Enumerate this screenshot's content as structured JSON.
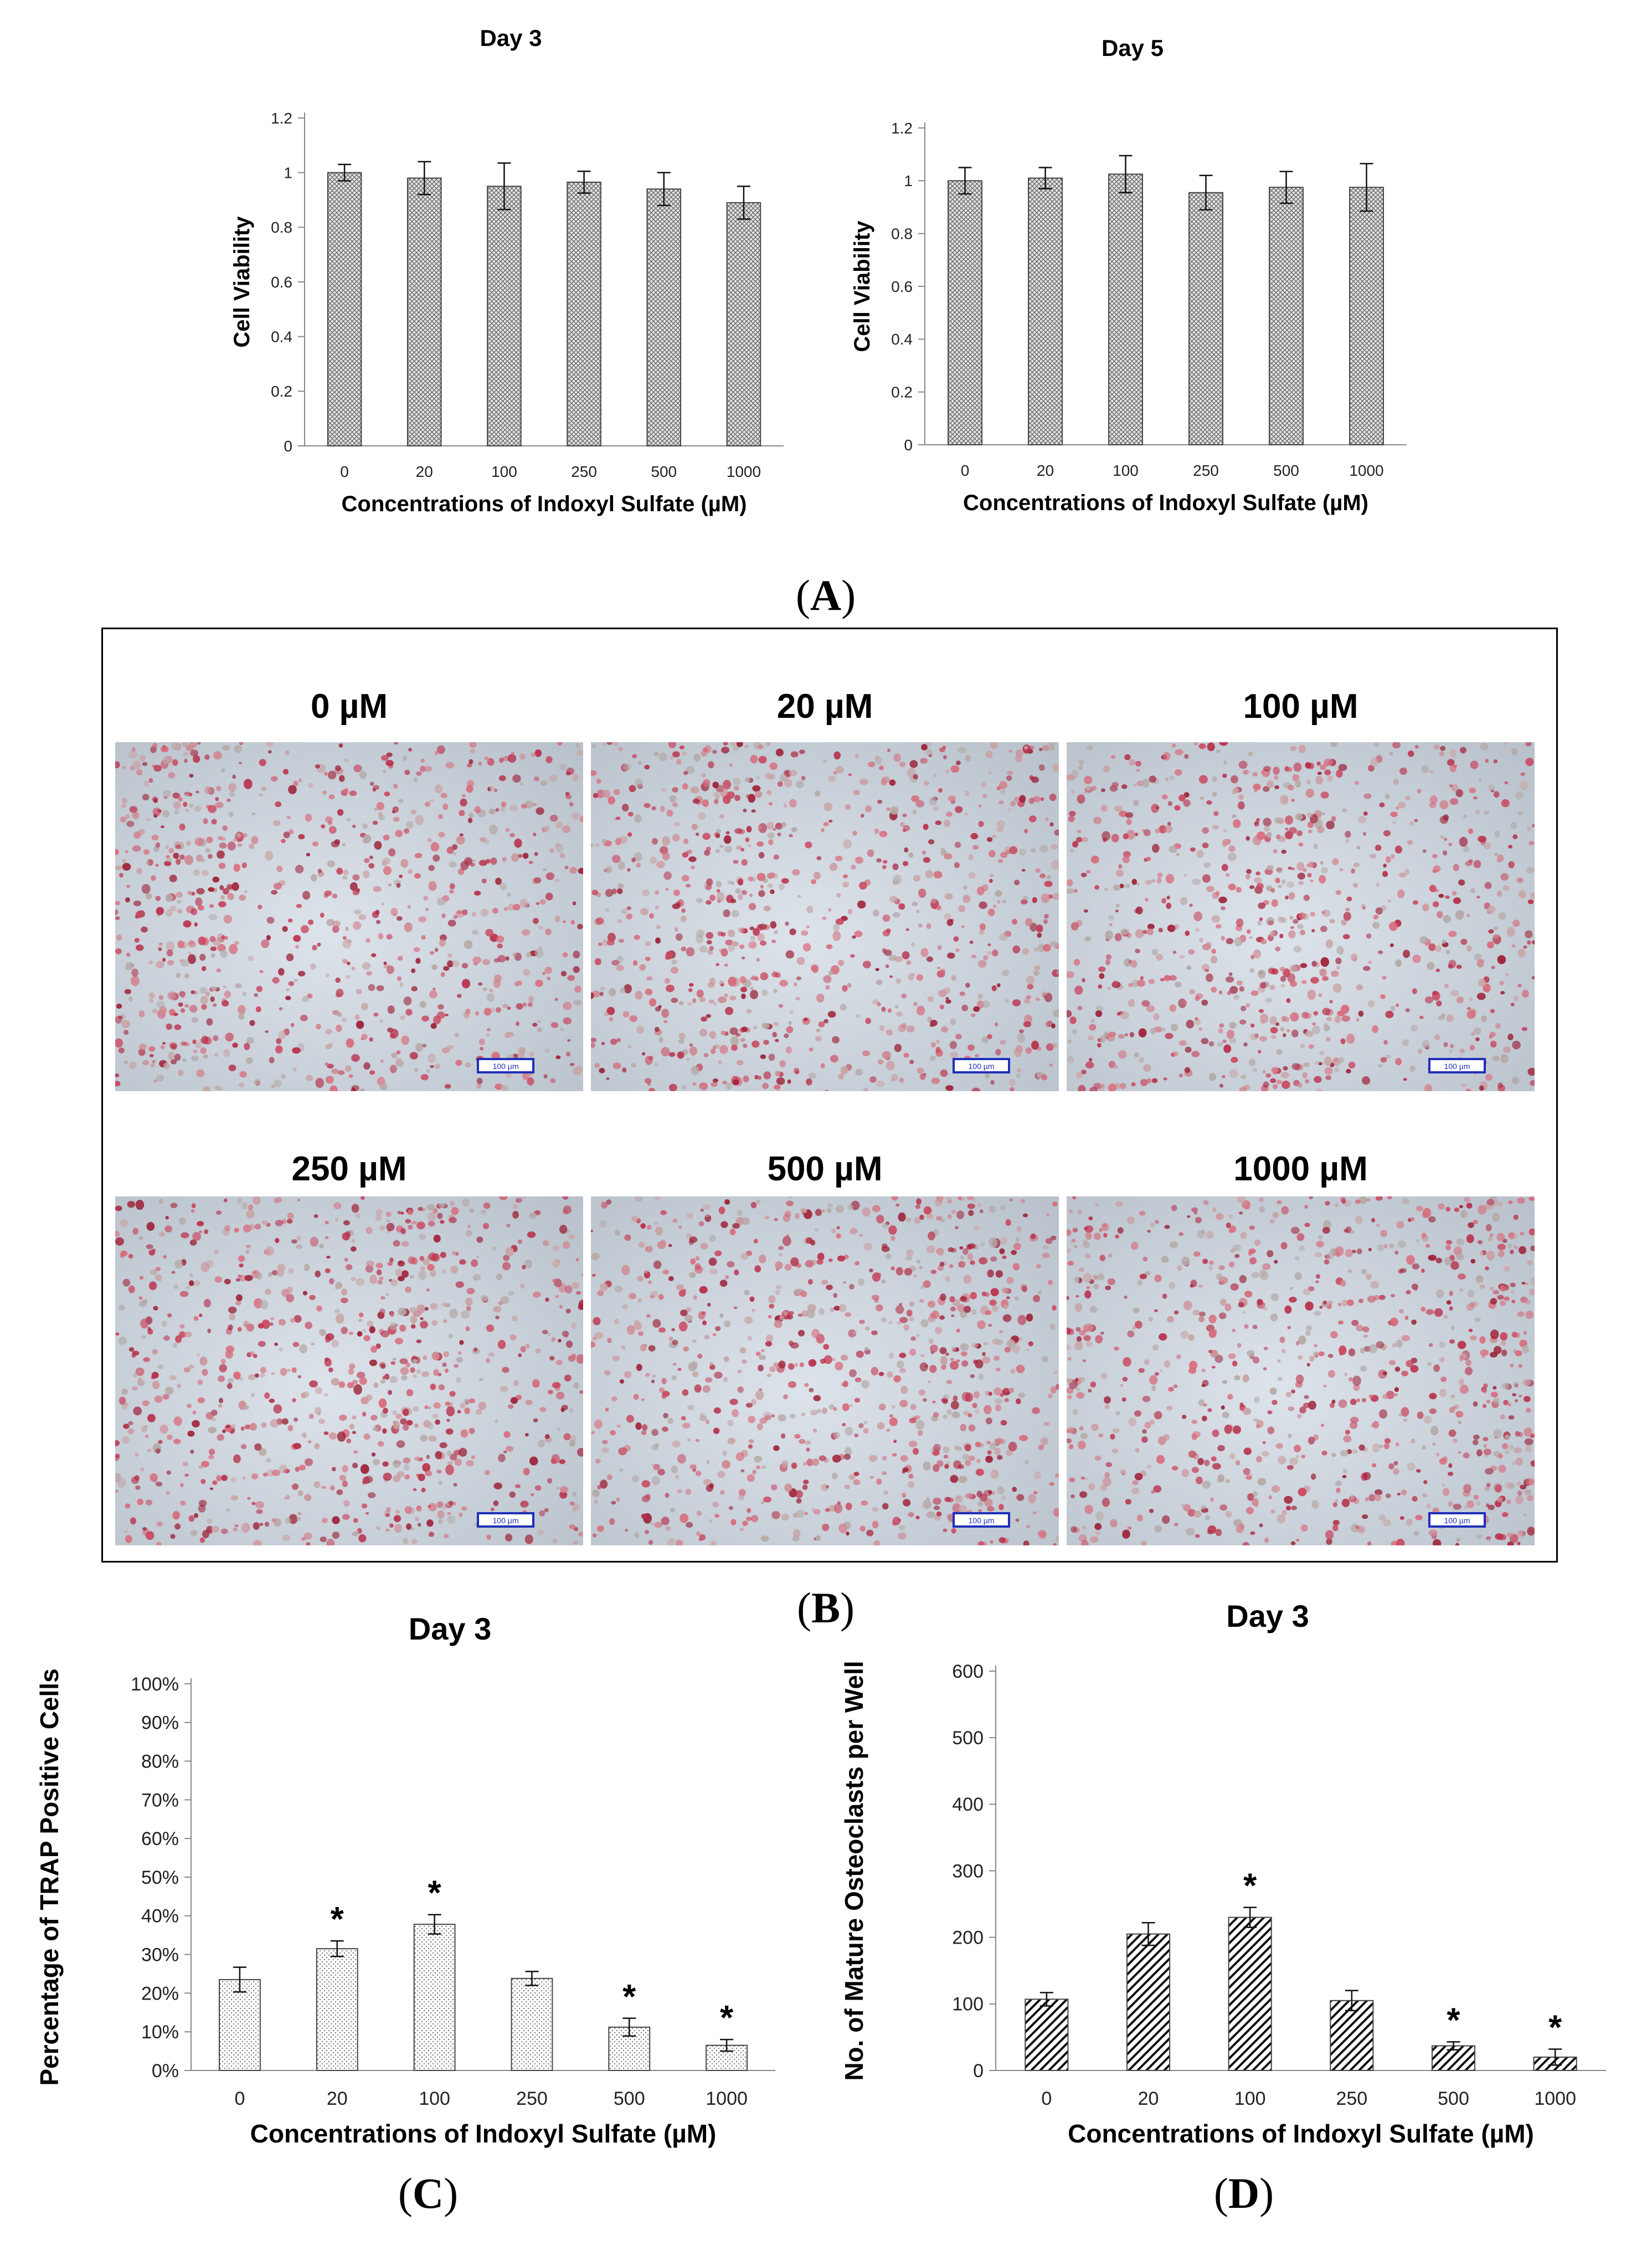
{
  "panel_labels": {
    "A": "A",
    "B": "B",
    "C": "C",
    "D": "D"
  },
  "micrographs": {
    "scalebar_label": "100 µm",
    "items": [
      {
        "title": "0 µM"
      },
      {
        "title": "20 µM"
      },
      {
        "title": "100 µM"
      },
      {
        "title": "250 µM"
      },
      {
        "title": "500 µM"
      },
      {
        "title": "1000 µM"
      }
    ]
  },
  "chart_data": [
    {
      "id": "A-day3",
      "type": "bar",
      "title": "Day 3",
      "xlabel": "Concentrations of Indoxyl Sulfate (µM)",
      "ylabel": "Cell Viability",
      "categories": [
        "0",
        "20",
        "100",
        "250",
        "500",
        "1000"
      ],
      "values": [
        1.0,
        0.98,
        0.95,
        0.965,
        0.94,
        0.89
      ],
      "errors": [
        0.03,
        0.06,
        0.085,
        0.04,
        0.06,
        0.06
      ],
      "ylim": [
        0,
        1.2
      ],
      "yticks": [
        "0",
        "0.2",
        "0.4",
        "0.6",
        "0.8",
        "1",
        "1.2"
      ],
      "pattern": "crosshatch"
    },
    {
      "id": "A-day5",
      "type": "bar",
      "title": "Day 5",
      "xlabel": "Concentrations of Indoxyl Sulfate (µM)",
      "ylabel": "Cell Viability",
      "categories": [
        "0",
        "20",
        "100",
        "250",
        "500",
        "1000"
      ],
      "values": [
        1.0,
        1.01,
        1.025,
        0.955,
        0.975,
        0.975
      ],
      "errors": [
        0.05,
        0.04,
        0.07,
        0.065,
        0.06,
        0.09
      ],
      "ylim": [
        0,
        1.2
      ],
      "yticks": [
        "0",
        "0.2",
        "0.4",
        "0.6",
        "0.8",
        "1",
        "1.2"
      ],
      "pattern": "crosshatch"
    },
    {
      "id": "C-trap",
      "type": "bar",
      "title": "Day 3",
      "xlabel": "Concentrations  of Indoxyl Sulfate (µM)",
      "ylabel": "Percentage of TRAP Positive Cells",
      "categories": [
        "0",
        "20",
        "100",
        "250",
        "500",
        "1000"
      ],
      "values": [
        23.5,
        31.5,
        37.8,
        23.8,
        11.2,
        6.5
      ],
      "errors": [
        3.2,
        2.0,
        2.5,
        1.8,
        2.3,
        1.5
      ],
      "significant": [
        false,
        true,
        true,
        false,
        true,
        true
      ],
      "annotation": "*",
      "ylim": [
        0,
        100
      ],
      "yticks": [
        "0%",
        "10%",
        "20%",
        "30%",
        "40%",
        "50%",
        "60%",
        "70%",
        "80%",
        "90%",
        "100%"
      ],
      "pattern": "dots"
    },
    {
      "id": "D-osteoclasts",
      "type": "bar",
      "title": "Day 3",
      "xlabel": "Concentrations of Indoxyl Sulfate (µM)",
      "ylabel": "No. of Mature Osteoclasts per Well",
      "categories": [
        "0",
        "20",
        "100",
        "250",
        "500",
        "1000"
      ],
      "values": [
        107,
        205,
        230,
        105,
        37,
        20
      ],
      "errors": [
        10,
        17,
        15,
        15,
        6,
        12
      ],
      "significant": [
        false,
        false,
        true,
        false,
        true,
        true
      ],
      "annotation": "*",
      "ylim": [
        0,
        600
      ],
      "yticks": [
        "0",
        "100",
        "200",
        "300",
        "400",
        "500",
        "600"
      ],
      "pattern": "diagonal"
    }
  ]
}
